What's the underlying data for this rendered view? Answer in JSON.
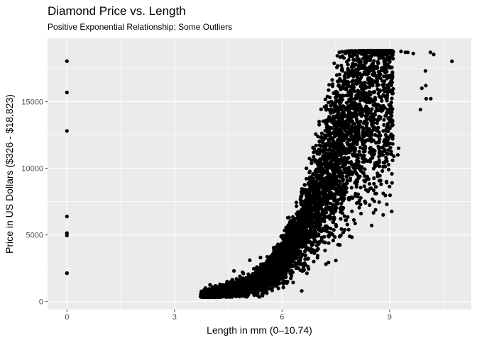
{
  "chart_data": {
    "type": "scatter",
    "title": "Diamond Price vs. Length",
    "subtitle": "Positive Exponential Relationship; Some Outliers",
    "xlabel": "Length in mm (0–10.74)",
    "ylabel": "Price in US Dollars ($326 - $18,823)",
    "xlim": [
      -0.54,
      11.28
    ],
    "ylim": [
      -600,
      19750
    ],
    "x_ticks": [
      0,
      3,
      6,
      9
    ],
    "x_tick_labels": [
      "0",
      "3",
      "6",
      "9"
    ],
    "y_ticks": [
      0,
      5000,
      10000,
      15000
    ],
    "y_tick_labels": [
      "0",
      "5000",
      "10000",
      "15000"
    ],
    "grid": true,
    "legend": "none",
    "colors": {
      "panel": "#ebebeb",
      "grid": "#ffffff",
      "point": "#000000"
    },
    "outliers": [
      {
        "x": 0,
        "y": 18034
      },
      {
        "x": 0,
        "y": 15686
      },
      {
        "x": 0,
        "y": 12800
      },
      {
        "x": 0,
        "y": 6381
      },
      {
        "x": 0,
        "y": 5139
      },
      {
        "x": 0,
        "y": 4954
      },
      {
        "x": 0,
        "y": 2130
      },
      {
        "x": 0,
        "y": 2130
      },
      {
        "x": 10.74,
        "y": 18018
      },
      {
        "x": 10.23,
        "y": 18531
      },
      {
        "x": 10.14,
        "y": 18700
      },
      {
        "x": 9.66,
        "y": 18600
      },
      {
        "x": 9.51,
        "y": 18700
      },
      {
        "x": 9.44,
        "y": 18700
      },
      {
        "x": 9.32,
        "y": 18760
      },
      {
        "x": 10.01,
        "y": 16200
      },
      {
        "x": 9.9,
        "y": 16000
      },
      {
        "x": 10.0,
        "y": 17300
      },
      {
        "x": 10.02,
        "y": 15220
      },
      {
        "x": 10.15,
        "y": 15220
      },
      {
        "x": 9.86,
        "y": 14400
      },
      {
        "x": 9.25,
        "y": 11500
      },
      {
        "x": 9.08,
        "y": 12300
      },
      {
        "x": 8.9,
        "y": 10800
      },
      {
        "x": 9.12,
        "y": 10900
      },
      {
        "x": 9.23,
        "y": 11000
      },
      {
        "x": 8.82,
        "y": 6500
      },
      {
        "x": 8.6,
        "y": 8100
      },
      {
        "x": 8.62,
        "y": 8600
      },
      {
        "x": 6.55,
        "y": 800
      },
      {
        "x": 4.9,
        "y": 2200
      },
      {
        "x": 4.66,
        "y": 2300
      },
      {
        "x": 5.1,
        "y": 3100
      },
      {
        "x": 5.4,
        "y": 3300
      }
    ],
    "trend": [
      {
        "x": 3.73,
        "y": 330
      },
      {
        "x": 4.0,
        "y": 480
      },
      {
        "x": 4.5,
        "y": 750
      },
      {
        "x": 5.0,
        "y": 1100
      },
      {
        "x": 5.5,
        "y": 1800
      },
      {
        "x": 6.0,
        "y": 3100
      },
      {
        "x": 6.5,
        "y": 5200
      },
      {
        "x": 7.0,
        "y": 7800
      },
      {
        "x": 7.5,
        "y": 11200
      },
      {
        "x": 8.0,
        "y": 14300
      },
      {
        "x": 8.5,
        "y": 16800
      },
      {
        "x": 9.0,
        "y": 18400
      }
    ]
  }
}
